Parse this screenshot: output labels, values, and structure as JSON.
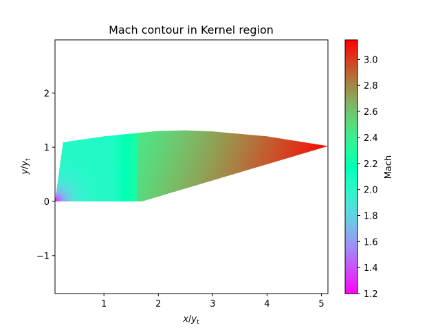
{
  "chart_data": {
    "type": "heatmap",
    "title": "Mach contour in Kernel region",
    "xlabel": "x/y_t",
    "ylabel": "y/y_t",
    "colorbar_label": "Mach",
    "colormap": "rainbow",
    "xlim": [
      0.1,
      5.12
    ],
    "ylim": [
      -1.7,
      2.98
    ],
    "xticks": [
      1,
      2,
      3,
      4,
      5
    ],
    "yticks": [
      -1,
      0,
      1,
      2
    ],
    "color_range": [
      1.2,
      3.15
    ],
    "colorbar_ticks": [
      1.2,
      1.4,
      1.6,
      1.8,
      2.0,
      2.2,
      2.4,
      2.6,
      2.8,
      3.0
    ],
    "region": {
      "inlet_bottom": [
        0.1,
        0.0
      ],
      "inlet_top": [
        0.25,
        1.09
      ],
      "upper_wall": [
        [
          0.25,
          1.09
        ],
        [
          1.0,
          1.2
        ],
        [
          2.0,
          1.3
        ],
        [
          2.5,
          1.31
        ],
        [
          3.0,
          1.29
        ],
        [
          4.0,
          1.2
        ],
        [
          5.12,
          1.02
        ]
      ],
      "axis_end": [
        1.7,
        0.0
      ],
      "exit_point": [
        5.12,
        1.02
      ]
    },
    "mach_field": {
      "min_value": 1.2,
      "min_location": [
        0.1,
        0.0
      ],
      "exit_value": 3.15
    }
  }
}
